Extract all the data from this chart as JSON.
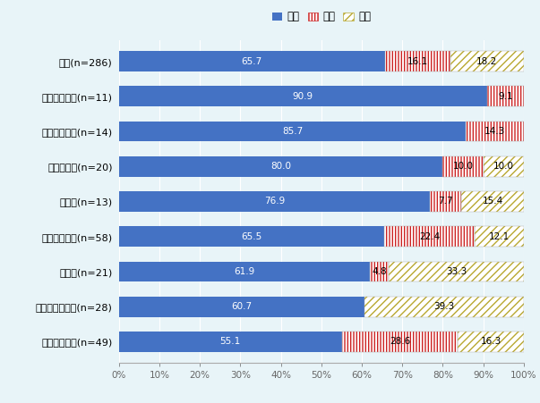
{
  "categories": [
    "総数(n=286)",
    "金融・保険業(n=11)",
    "輸送機械器具(n=14)",
    "化学・医薬(n=20)",
    "運輸業(n=13)",
    "電気機械器具(n=58)",
    "建設業(n=21)",
    "鉄・非鉄・金属(n=28)",
    "卸売・小売業(n=49)"
  ],
  "black": [
    65.7,
    90.9,
    85.7,
    80.0,
    76.9,
    65.5,
    61.9,
    60.7,
    55.1
  ],
  "balanced": [
    16.1,
    9.1,
    14.3,
    10.0,
    7.7,
    22.4,
    4.8,
    0.0,
    28.6
  ],
  "red": [
    18.2,
    0.0,
    0.0,
    10.0,
    15.4,
    12.1,
    33.3,
    39.3,
    16.3
  ],
  "black_labels": [
    "65.7",
    "90.9",
    "85.7",
    "80.0",
    "76.9",
    "65.5",
    "61.9",
    "60.7",
    "55.1"
  ],
  "balanced_labels": [
    "16.1",
    "9.1",
    "14.3",
    "10.0",
    "7.7",
    "22.4",
    "4.8",
    "",
    "28.6"
  ],
  "red_labels": [
    "18.2",
    "",
    "",
    "10.0",
    "15.4",
    "12.1",
    "33.3",
    "39.3",
    "16.3"
  ],
  "color_black": "#4472C4",
  "background_color": "#E8F4F8",
  "legend_labels": [
    "黒字",
    "均衡",
    "赤字"
  ],
  "xlim": [
    0,
    100
  ],
  "xticks": [
    0,
    10,
    20,
    30,
    40,
    50,
    60,
    70,
    80,
    90,
    100
  ]
}
